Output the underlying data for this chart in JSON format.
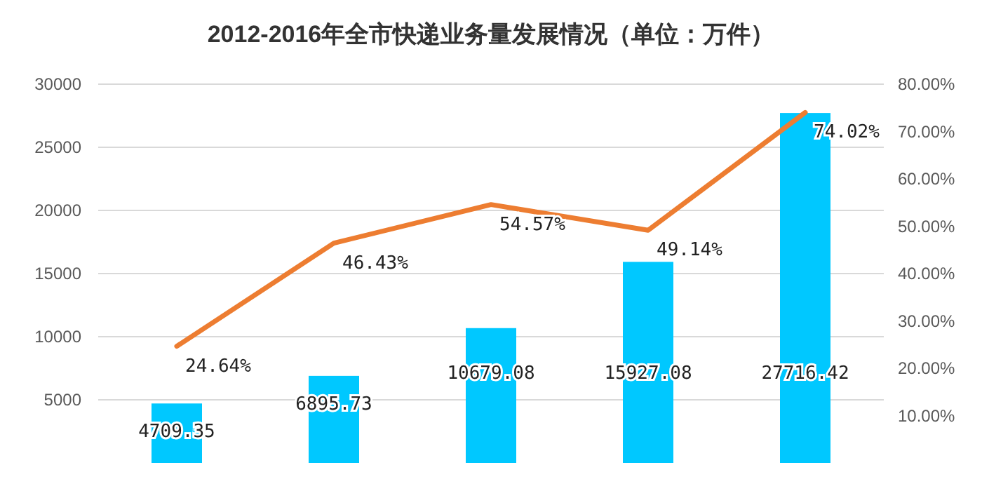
{
  "chart_data": {
    "type": "bar",
    "title": "2012-2016年全市快递业务量发展情况（单位：万件）",
    "categories": [
      null,
      null,
      null,
      null,
      null
    ],
    "series": [
      {
        "color": "#00c8ff",
        "values": [
          4709.35,
          6895.73,
          10679.08,
          15927.08,
          27716.42
        ]
      },
      {
        "type": "line",
        "axis": "y2",
        "color": "#ed7d31",
        "values": [
          24.64,
          46.43,
          54.57,
          49.14,
          74.02
        ],
        "value_labels": [
          "24.64%",
          "46.43%",
          "54.57%",
          "49.14%",
          "74.02%"
        ]
      }
    ],
    "data_labels": true,
    "ylim": [
      0,
      30000
    ],
    "yticks": [
      5000,
      10000,
      15000,
      20000,
      25000,
      30000
    ],
    "y2lim": [
      0,
      80
    ],
    "y2ticks": [
      {
        "value": 10,
        "label": "10.00%"
      },
      {
        "value": 20,
        "label": "20.00%"
      },
      {
        "value": 30,
        "label": "30.00%"
      },
      {
        "value": 40,
        "label": "40.00%"
      },
      {
        "value": 50,
        "label": "50.00%"
      },
      {
        "value": 60,
        "label": "60.00%"
      },
      {
        "value": 70,
        "label": "70.00%"
      },
      {
        "value": 80,
        "label": "80.00%"
      }
    ],
    "grid": "y",
    "marker": "none"
  }
}
